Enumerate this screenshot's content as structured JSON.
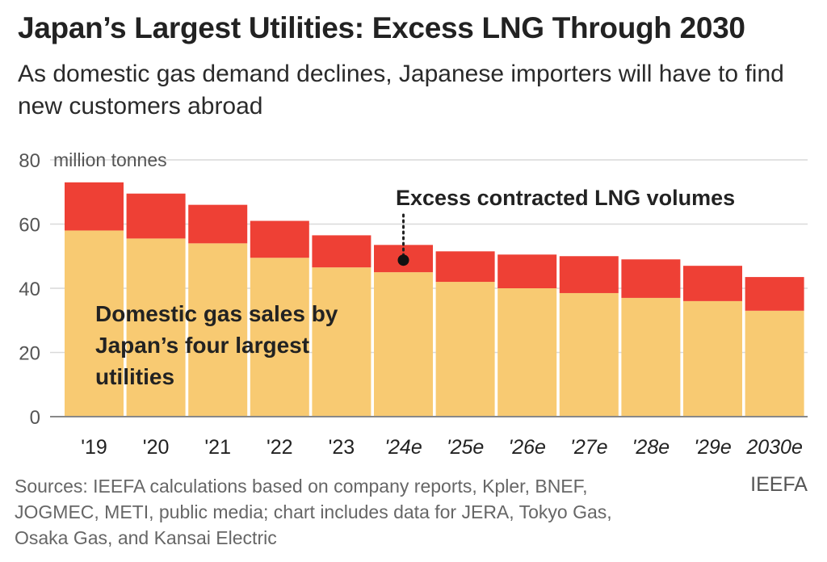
{
  "header": {
    "title": "Japan’s Largest Utilities: Excess LNG Through 2030",
    "subtitle": "As domestic gas demand declines, Japanese importers will have to find new customers abroad"
  },
  "footer": {
    "source": "Sources: IEEFA calculations based on company reports, Kpler, BNEF, JOGMEC, METI, public media; chart includes data for JERA, Tokyo Gas, Osaka Gas, and Kansai Electric",
    "brand": "IEEFA"
  },
  "colors": {
    "domestic": "#f8ca72",
    "excess": "#ee4035",
    "grid": "#d9d9d9",
    "axis": "#888888"
  },
  "chart_data": {
    "type": "bar",
    "stacked": true,
    "unit_label": "million tonnes",
    "ylim": [
      0,
      80
    ],
    "yticks": [
      0,
      20,
      40,
      60,
      80
    ],
    "grid": true,
    "categories": [
      "'19",
      "'20",
      "'21",
      "'22",
      "'23",
      "'24e",
      "'25e",
      "'26e",
      "'27e",
      "'28e",
      "'29e",
      "2030e"
    ],
    "estimated_from_index": 5,
    "series": [
      {
        "name": "Domestic gas sales by Japan’s four largest utilities",
        "color": "#f8ca72",
        "values": [
          58,
          55.5,
          54,
          49.5,
          46.5,
          45,
          42,
          40,
          38.5,
          37,
          36,
          33
        ]
      },
      {
        "name": "Excess contracted LNG volumes",
        "color": "#ee4035",
        "values": [
          15,
          14,
          12,
          11.5,
          10,
          8.5,
          9.5,
          10.5,
          11.5,
          12,
          11,
          10.5
        ]
      }
    ],
    "annotations": {
      "domestic": [
        "Domestic gas sales by",
        "Japan’s four largest",
        "utilities"
      ],
      "excess": "Excess contracted LNG volumes"
    }
  }
}
